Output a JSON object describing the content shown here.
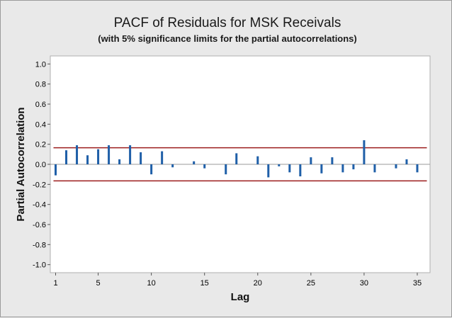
{
  "chart_data": {
    "type": "bar",
    "title": "PACF of Residuals for MSK Receivals",
    "subtitle": "(with 5% significance limits for the partial autocorrelations)",
    "xlabel": "Lag",
    "ylabel": "Partial Autocorrelation",
    "xlim": [
      0.5,
      36.2
    ],
    "ylim": [
      -1.08,
      1.08
    ],
    "x_ticks": [
      1,
      5,
      10,
      15,
      20,
      25,
      30,
      35
    ],
    "y_ticks": [
      1.0,
      0.8,
      0.6,
      0.4,
      0.2,
      0.0,
      -0.2,
      -0.4,
      -0.6,
      -0.8,
      -1.0
    ],
    "y_tick_labels": [
      "1.0",
      "0.8",
      "0.6",
      "0.4",
      "0.2",
      "0.0",
      "-0.2",
      "-0.4",
      "-0.6",
      "-0.8",
      "-1.0"
    ],
    "lags": [
      1,
      2,
      3,
      4,
      5,
      6,
      7,
      8,
      9,
      10,
      11,
      12,
      13,
      14,
      15,
      16,
      17,
      18,
      19,
      20,
      21,
      22,
      23,
      24,
      25,
      26,
      27,
      28,
      29,
      30,
      31,
      32,
      33,
      34,
      35
    ],
    "values": [
      -0.11,
      0.14,
      0.19,
      0.09,
      0.15,
      0.19,
      0.05,
      0.19,
      0.12,
      -0.1,
      0.13,
      -0.03,
      0.0,
      0.03,
      -0.04,
      0.0,
      -0.1,
      0.11,
      0.0,
      0.08,
      -0.13,
      -0.02,
      -0.08,
      -0.12,
      0.07,
      -0.09,
      0.07,
      -0.08,
      -0.05,
      0.24,
      -0.08,
      0.0,
      -0.04,
      0.05,
      -0.08
    ],
    "significance_limits": [
      0.165,
      -0.165
    ],
    "colors": {
      "bar": "#1f5fa8",
      "limit": "#9b1c1c",
      "zero_line": "#9a9a9a",
      "plot_background": "#ffffff",
      "figure_background": "#e9e9e9",
      "plot_border": "#b0b0b0"
    },
    "grid": false
  }
}
